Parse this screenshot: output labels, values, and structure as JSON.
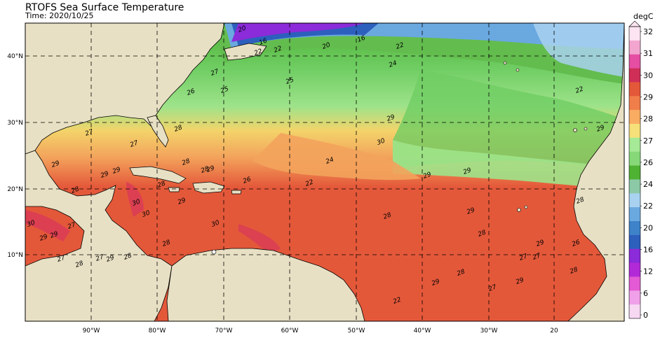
{
  "header": {
    "title": "RTOFS Sea Surface Temperature",
    "subtitle": "Time: 2020/10/25"
  },
  "map": {
    "lon_labels": [
      "90°W",
      "80°W",
      "70°W",
      "60°W",
      "50°W",
      "40°W",
      "30°W",
      "20"
    ],
    "lat_labels": [
      "40°N",
      "30°N",
      "20°N",
      "10°N"
    ],
    "contour_labels": [
      "16",
      "20",
      "22",
      "16",
      "20",
      "22",
      "22",
      "24",
      "27",
      "26",
      "25",
      "25",
      "28",
      "27",
      "29",
      "27",
      "28",
      "29",
      "29",
      "28",
      "30",
      "30",
      "29",
      "30",
      "28",
      "27",
      "27",
      "28",
      "29",
      "28",
      "30",
      "27",
      "29",
      "29",
      "28",
      "28",
      "29",
      "26",
      "24",
      "22",
      "29",
      "30",
      "29",
      "29",
      "28",
      "29",
      "28",
      "29",
      "27",
      "27",
      "28",
      "26",
      "28",
      "29",
      "27",
      "28",
      "29",
      "22",
      "22",
      "29"
    ],
    "colors": {
      "land": "#e8e0c4",
      "ocean_warm": "#e4583a",
      "ocean_hot": "#d83a58",
      "ocean_mid": "#f07e4a",
      "ocean_yellow": "#f3d46a",
      "ocean_green_light": "#9ee38a",
      "ocean_green": "#6fcd63",
      "ocean_green_dark": "#4fb233",
      "ocean_blue": "#3e83c9",
      "ocean_violet": "#8b2bd9"
    }
  },
  "colorbar": {
    "unit": "degC",
    "ticks": [
      "32",
      "31",
      "30",
      "29",
      "28",
      "27",
      "26",
      "24",
      "22",
      "20",
      "16",
      "12",
      "6",
      "0"
    ],
    "colors": [
      "#fce4f2",
      "#f2a6cf",
      "#e54ea3",
      "#cf2f57",
      "#e4583a",
      "#f07e4a",
      "#f9ad63",
      "#f6e07a",
      "#a6e996",
      "#86d878",
      "#4fb233",
      "#8cc9a6",
      "#a8d2f0",
      "#6aa8e0",
      "#3e83c9",
      "#2d5fbd",
      "#8b2bd9",
      "#b22ad8",
      "#e35ad4",
      "#f0a0e8",
      "#f7d8f3"
    ]
  }
}
